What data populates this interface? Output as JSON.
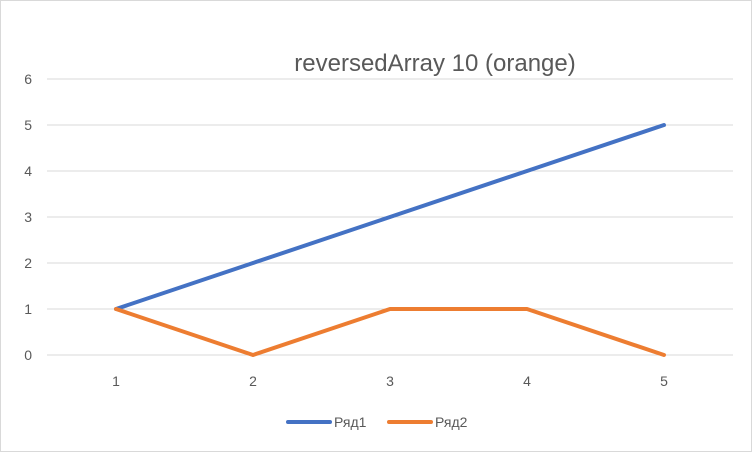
{
  "chart_data": {
    "type": "line",
    "title": "reversedArray 10 (orange)",
    "categories": [
      "1",
      "2",
      "3",
      "4",
      "5"
    ],
    "yticks": [
      "0",
      "1",
      "2",
      "3",
      "4",
      "5",
      "6"
    ],
    "ylim": [
      0,
      6
    ],
    "grid": true,
    "legend_position": "bottom",
    "series": [
      {
        "name": "Ряд1",
        "values": [
          1,
          2,
          3,
          4,
          5
        ],
        "color": "#4472C4"
      },
      {
        "name": "Ряд2",
        "values": [
          1,
          0,
          1,
          1,
          0
        ],
        "color": "#ED7D31"
      }
    ]
  }
}
